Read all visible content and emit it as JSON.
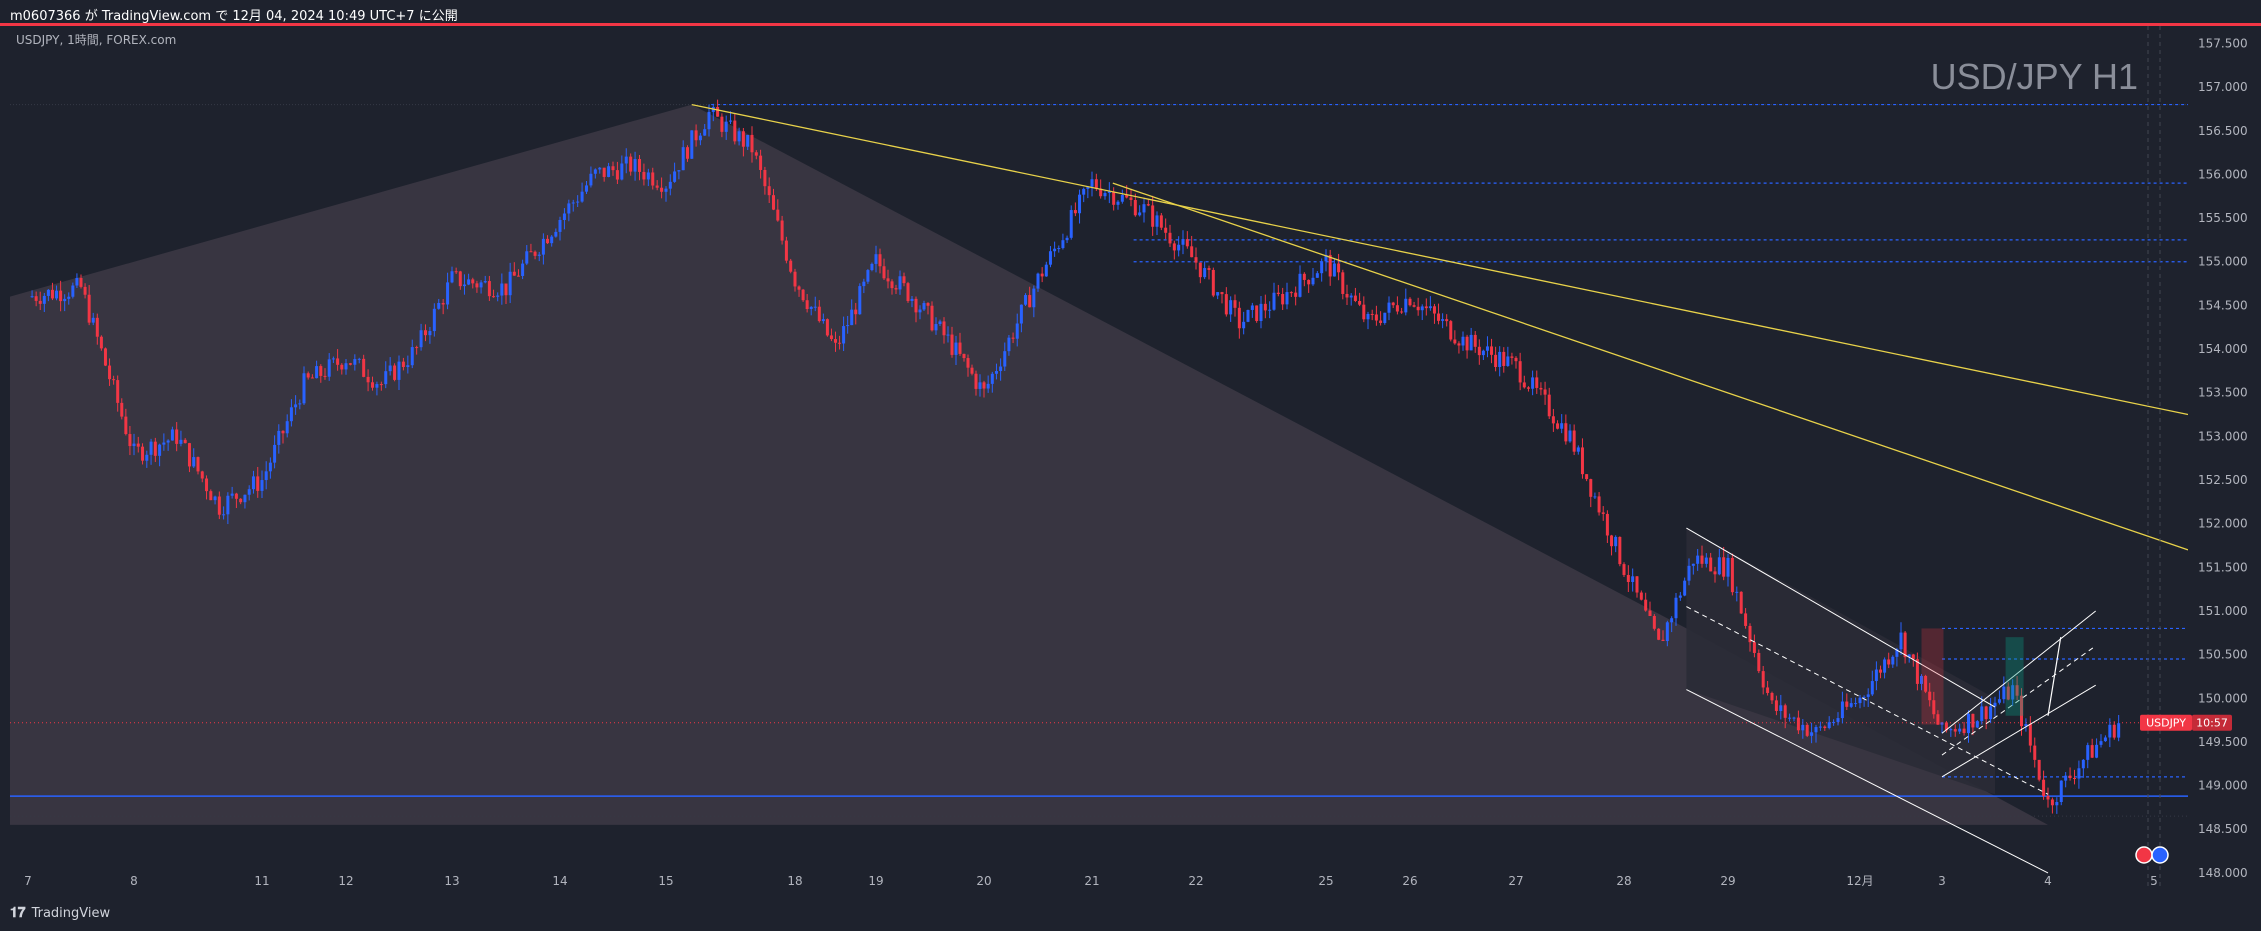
{
  "header": {
    "publish_text": "m0607366 が TradingView.com で 12月 04, 2024 10:49 UTC+7 に公開"
  },
  "symbol_info": "USDJPY, 1時間, FOREX.com",
  "watermark": "USD/JPY H1",
  "price_label": {
    "symbol": "USDJPY",
    "timer": "10:57",
    "price": 149.72
  },
  "footer": {
    "logo_text": "TradingView"
  },
  "colors": {
    "background": "#1e222d",
    "up_candle": "#2962ff",
    "down_candle": "#f23645",
    "trendline": "#e8d24a",
    "level_line": "#2962ff",
    "axis_text": "#b2b5be",
    "zone_fill": "#3b3744",
    "grid_dots": "#363a45"
  },
  "chart_data": {
    "type": "candlestick",
    "title": "USD/JPY H1",
    "y_axis": {
      "range": [
        147.85,
        157.7
      ],
      "ticks": [
        "157.500",
        "157.000",
        "156.500",
        "156.000",
        "155.500",
        "155.000",
        "154.500",
        "154.000",
        "153.500",
        "153.000",
        "152.500",
        "152.000",
        "151.500",
        "151.000",
        "150.500",
        "150.000",
        "149.500",
        "149.000",
        "148.500",
        "148.000"
      ]
    },
    "x_axis": {
      "ticks": [
        "7",
        "8",
        "11",
        "12",
        "13",
        "14",
        "15",
        "18",
        "19",
        "20",
        "21",
        "22",
        "25",
        "26",
        "27",
        "28",
        "29",
        "12月",
        "3",
        "4",
        "5"
      ]
    },
    "price_path": [
      [
        "7",
        154.6
      ],
      [
        "7",
        154.7
      ],
      [
        "8",
        152.8
      ],
      [
        "8",
        153.0
      ],
      [
        "8",
        152.2
      ],
      [
        "11",
        152.5
      ],
      [
        "11",
        153.6
      ],
      [
        "12",
        153.9
      ],
      [
        "12",
        153.6
      ],
      [
        "12",
        154.0
      ],
      [
        "13",
        154.8
      ],
      [
        "13",
        154.7
      ],
      [
        "14",
        155.5
      ],
      [
        "14",
        156.0
      ],
      [
        "14",
        156.1
      ],
      [
        "15",
        155.9
      ],
      [
        "15",
        156.7
      ],
      [
        "15",
        156.3
      ],
      [
        "18",
        154.8
      ],
      [
        "18",
        154.0
      ],
      [
        "19",
        155.0
      ],
      [
        "19",
        154.6
      ],
      [
        "19",
        154.1
      ],
      [
        "20",
        153.5
      ],
      [
        "20",
        154.8
      ],
      [
        "21",
        155.9
      ],
      [
        "21",
        155.6
      ],
      [
        "22",
        155.0
      ],
      [
        "22",
        154.3
      ],
      [
        "22",
        154.6
      ],
      [
        "25",
        155.0
      ],
      [
        "25",
        154.3
      ],
      [
        "26",
        154.6
      ],
      [
        "26",
        154.1
      ],
      [
        "27",
        153.8
      ],
      [
        "27",
        153.0
      ],
      [
        "28",
        151.5
      ],
      [
        "28",
        150.6
      ],
      [
        "28",
        151.6
      ],
      [
        "29",
        151.5
      ],
      [
        "29",
        149.9
      ],
      [
        "29",
        149.6
      ],
      [
        "12月",
        150.0
      ],
      [
        "12月",
        150.7
      ],
      [
        "3",
        149.6
      ],
      [
        "3",
        149.8
      ],
      [
        "3",
        150.1
      ],
      [
        "4",
        148.8
      ],
      [
        "4",
        149.3
      ],
      [
        "4",
        149.72
      ]
    ],
    "horizontal_levels": [
      156.8,
      155.9,
      155.25,
      155.0,
      150.8,
      150.45,
      149.1,
      148.88
    ],
    "trendlines": [
      {
        "from": [
          "15",
          156.8
        ],
        "to": [
          "5",
          153.25
        ]
      },
      {
        "from": [
          "21",
          155.9
        ],
        "to": [
          "5",
          151.7
        ]
      }
    ]
  }
}
